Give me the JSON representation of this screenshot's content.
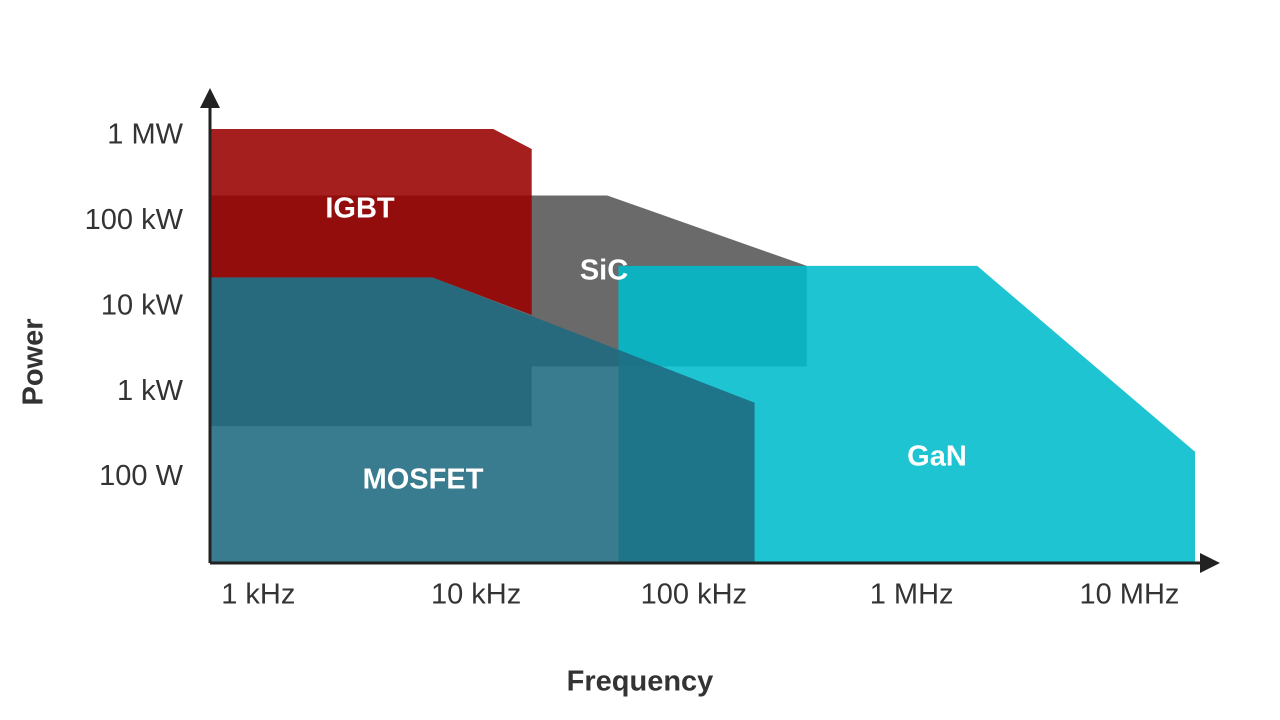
{
  "chart_data": {
    "type": "region",
    "xlabel": "Frequency",
    "ylabel": "Power",
    "xscale": "log",
    "yscale": "log",
    "grid": false,
    "xlim": [
      600,
      20000000
    ],
    "ylim": [
      10,
      3000000
    ],
    "xticks": [
      {
        "value": 1000,
        "label": "1 kHz"
      },
      {
        "value": 10000,
        "label": "10 kHz"
      },
      {
        "value": 100000,
        "label": "100 kHz"
      },
      {
        "value": 1000000,
        "label": "1 MHz"
      },
      {
        "value": 10000000,
        "label": "10 MHz"
      }
    ],
    "yticks": [
      {
        "value": 100,
        "label": "100 W"
      },
      {
        "value": 1000,
        "label": "1 kW"
      },
      {
        "value": 10000,
        "label": "10 kW"
      },
      {
        "value": 100000,
        "label": "100 kW"
      },
      {
        "value": 1000000,
        "label": "1 MW"
      }
    ],
    "series": [
      {
        "name": "SiC",
        "color": "#555555",
        "x": [
          600,
          40000,
          330000,
          330000,
          18000,
          18000,
          600
        ],
        "values": [
          200000,
          200000,
          30000,
          2000,
          2000,
          400,
          400
        ]
      },
      {
        "name": "GaN",
        "color": "#00bccc",
        "x": [
          45000,
          2000000,
          20000000,
          20000000,
          45000
        ],
        "values": [
          30000,
          30000,
          200,
          10,
          10
        ]
      },
      {
        "name": "MOSFET",
        "color": "#1f6a80",
        "x": [
          600,
          6300,
          190000,
          190000,
          600
        ],
        "values": [
          22000,
          22000,
          750,
          10,
          10
        ]
      },
      {
        "name": "IGBT",
        "color": "#990000",
        "x": [
          600,
          12000,
          18000,
          18000,
          6300,
          600
        ],
        "values": [
          1200000,
          1200000,
          700000,
          8000,
          22000,
          22000
        ]
      }
    ]
  }
}
